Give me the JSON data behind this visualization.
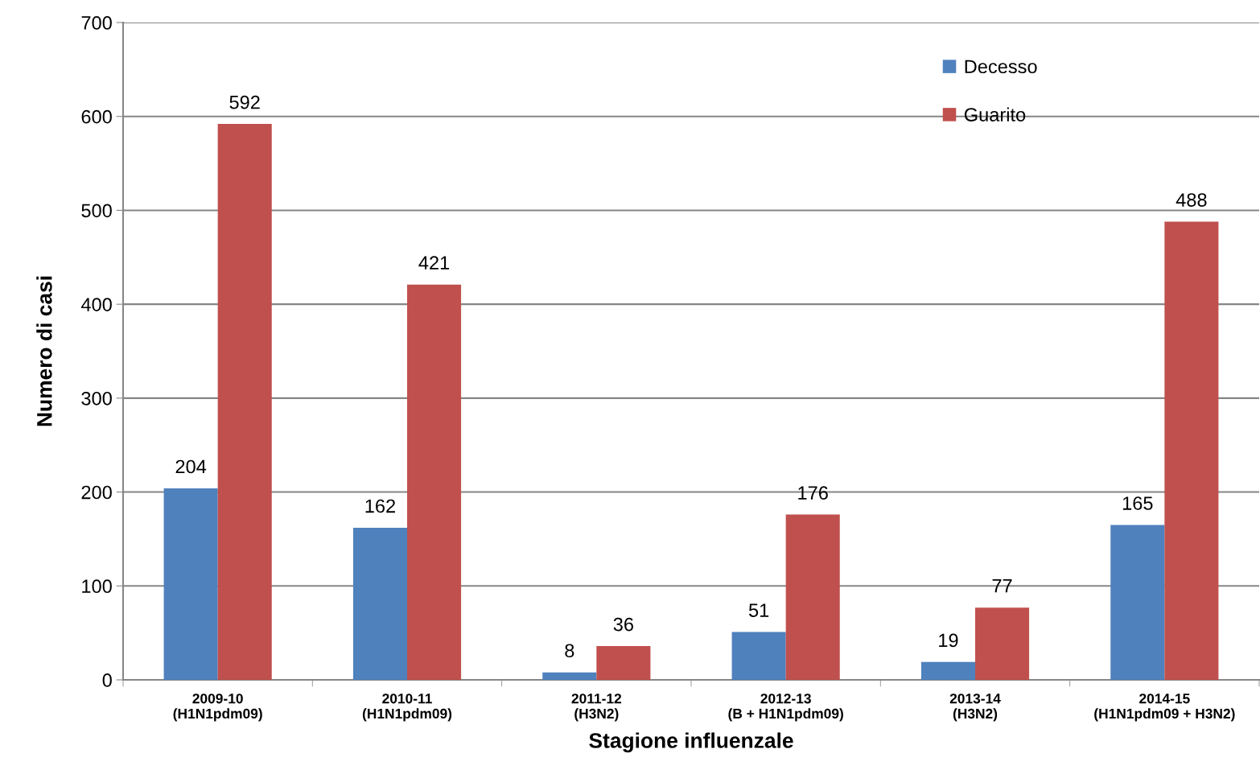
{
  "chart_data": {
    "type": "bar",
    "xlabel": "Stagione influenzale",
    "ylabel": "Numero di casi",
    "categories": [
      "2009-10\n(H1N1pdm09)",
      "2010-11\n(H1N1pdm09)",
      "2011-12\n(H3N2)",
      "2012-13\n(B + H1N1pdm09)",
      "2013-14\n(H3N2)",
      "2014-15\n(H1N1pdm09 + H3N2)"
    ],
    "series": [
      {
        "name": "Decesso",
        "color": "#4f81bd",
        "values": [
          204,
          162,
          8,
          51,
          19,
          165
        ]
      },
      {
        "name": "Guarito",
        "color": "#c0504d",
        "values": [
          592,
          421,
          36,
          176,
          77,
          488
        ]
      }
    ],
    "ylim": [
      0,
      700
    ],
    "yticks": [
      0,
      100,
      200,
      300,
      400,
      500,
      600,
      700
    ],
    "grid": "y",
    "legend": "top right",
    "data_labels": true
  }
}
